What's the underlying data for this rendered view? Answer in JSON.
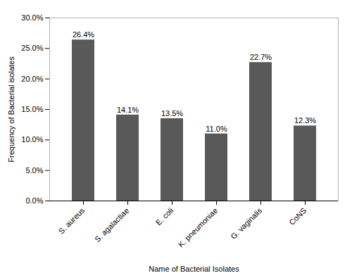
{
  "chart_data": {
    "type": "bar",
    "categories": [
      "S. aureus",
      "S. agalactiae",
      "E. coli",
      "K. pneumoniae",
      "G. vaginalis",
      "CoNS"
    ],
    "values": [
      26.4,
      14.1,
      13.5,
      11.0,
      22.7,
      12.3
    ],
    "value_labels": [
      "26.4%",
      "14.1%",
      "13.5%",
      "11.0%",
      "22.7%",
      "12.3%"
    ],
    "data_labels": true,
    "color": "#595959",
    "xlabel": "Name of Bacterial Isolates",
    "ylabel": "Frequency of Bacterial isolates",
    "ylim": [
      0,
      30
    ],
    "yticks": [
      {
        "value": 0,
        "label": "0.0%"
      },
      {
        "value": 5,
        "label": "5.0%"
      },
      {
        "value": 10,
        "label": "10.0%"
      },
      {
        "value": 15,
        "label": "15.0%"
      },
      {
        "value": 20,
        "label": "20.0%"
      },
      {
        "value": 25,
        "label": "25.0%"
      },
      {
        "value": 30,
        "label": "30.0%"
      }
    ],
    "grid": false
  }
}
